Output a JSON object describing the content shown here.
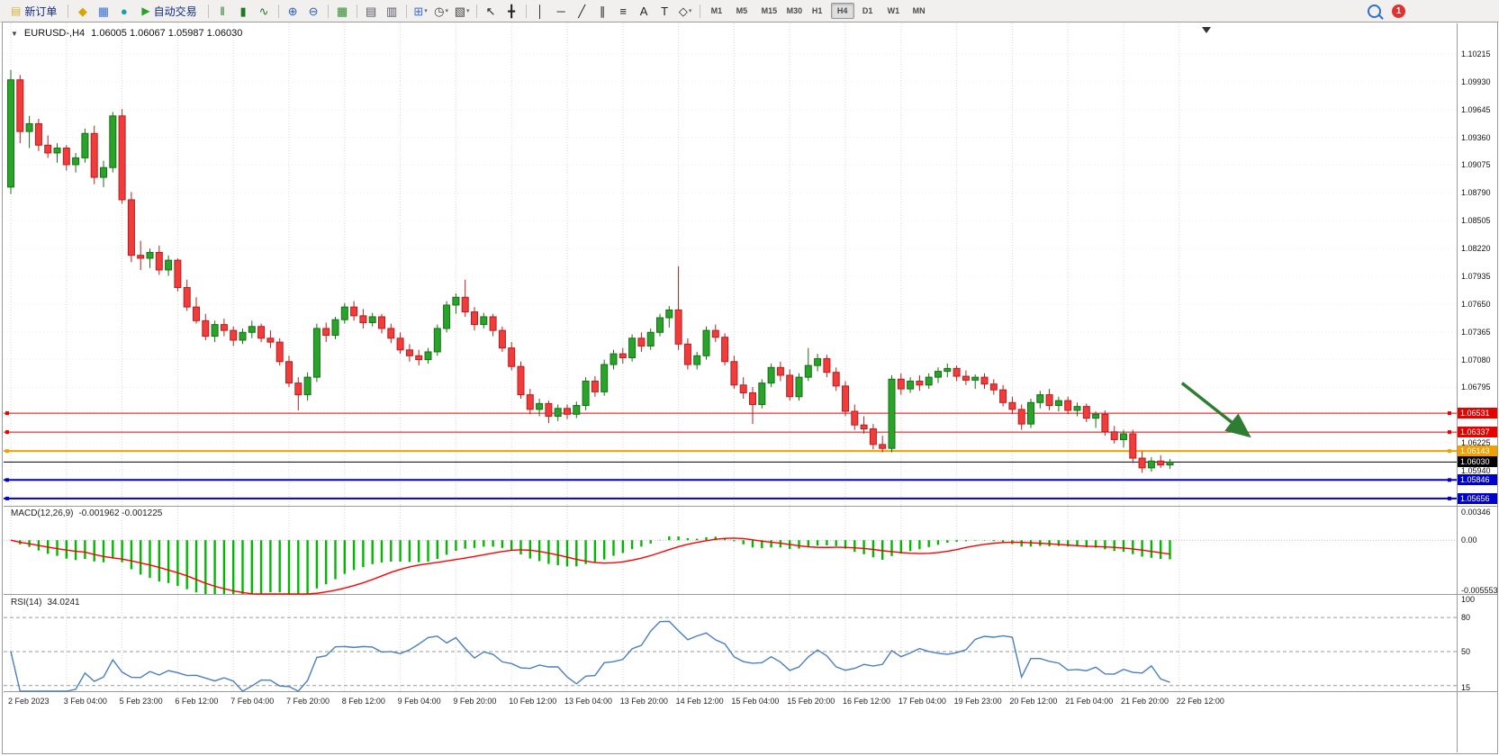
{
  "toolbar": {
    "notification_count": "1",
    "items": [
      {
        "t": "btn",
        "name": "new-order-button",
        "label": "新订单",
        "icon_glyph": "▤",
        "icon_color": "#d8b13a"
      },
      {
        "t": "sep"
      },
      {
        "t": "icon",
        "name": "deposit-icon",
        "glyph": "◆",
        "color": "#d9a400"
      },
      {
        "t": "icon",
        "name": "reports-icon",
        "glyph": "▦",
        "color": "#3b6fd6"
      },
      {
        "t": "icon",
        "name": "community-icon",
        "glyph": "●",
        "color": "#18a0b0"
      },
      {
        "t": "btn",
        "name": "autotrading-button",
        "label": "自动交易",
        "icon_glyph": "▶",
        "icon_color": "#27a327"
      },
      {
        "t": "sep"
      },
      {
        "t": "icon",
        "name": "bar-chart-type-icon",
        "glyph": "‖",
        "color": "#1f7a1f"
      },
      {
        "t": "icon",
        "name": "candlestick-type-icon",
        "glyph": "▮",
        "color": "#1f7a1f"
      },
      {
        "t": "icon",
        "name": "line-chart-type-icon",
        "glyph": "∿",
        "color": "#1f7a1f"
      },
      {
        "t": "sep"
      },
      {
        "t": "icon",
        "name": "zoom-in-icon",
        "glyph": "⊕",
        "color": "#2a5bc0"
      },
      {
        "t": "icon",
        "name": "zoom-out-icon",
        "glyph": "⊖",
        "color": "#2a5bc0"
      },
      {
        "t": "sep"
      },
      {
        "t": "icon",
        "name": "tile-windows-icon",
        "glyph": "▦",
        "color": "#2e8b2e"
      },
      {
        "t": "sep"
      },
      {
        "t": "icon",
        "name": "cascade-windows-icon",
        "glyph": "▤",
        "color": "#556"
      },
      {
        "t": "icon",
        "name": "arrange-windows-icon",
        "glyph": "▥",
        "color": "#556"
      },
      {
        "t": "sep"
      },
      {
        "t": "icon",
        "name": "new-chart-icon",
        "glyph": "⊞",
        "color": "#3b6fd6",
        "dropdown": true
      },
      {
        "t": "icon",
        "name": "period-clock-icon",
        "glyph": "◷",
        "color": "#444",
        "dropdown": true
      },
      {
        "t": "icon",
        "name": "templates-icon",
        "glyph": "▧",
        "color": "#444",
        "dropdown": true
      },
      {
        "t": "sep"
      },
      {
        "t": "icon",
        "name": "cursor-icon",
        "glyph": "↖",
        "color": "#222"
      },
      {
        "t": "icon",
        "name": "crosshair-icon",
        "glyph": "╋",
        "color": "#222"
      },
      {
        "t": "sep"
      },
      {
        "t": "icon",
        "name": "vertical-line-icon",
        "glyph": "│",
        "color": "#222"
      },
      {
        "t": "icon",
        "name": "horizontal-line-icon",
        "glyph": "─",
        "color": "#222"
      },
      {
        "t": "icon",
        "name": "trendline-icon",
        "glyph": "╱",
        "color": "#222"
      },
      {
        "t": "icon",
        "name": "equidistant-channel-icon",
        "glyph": "∥",
        "color": "#222"
      },
      {
        "t": "icon",
        "name": "fibonacci-icon",
        "glyph": "≡",
        "color": "#222"
      },
      {
        "t": "icon",
        "name": "text-icon",
        "glyph": "A",
        "color": "#222"
      },
      {
        "t": "icon",
        "name": "text-label-icon",
        "glyph": "T",
        "color": "#222"
      },
      {
        "t": "icon",
        "name": "arrows-shapes-icon",
        "glyph": "◇",
        "color": "#222",
        "dropdown": true
      },
      {
        "t": "sep"
      },
      {
        "t": "tf",
        "label": "M1"
      },
      {
        "t": "tf",
        "label": "M5"
      },
      {
        "t": "tf",
        "label": "M15"
      },
      {
        "t": "tf",
        "label": "M30"
      },
      {
        "t": "tf",
        "label": "H1"
      },
      {
        "t": "tf",
        "label": "H4",
        "active": true
      },
      {
        "t": "tf",
        "label": "D1"
      },
      {
        "t": "tf",
        "label": "W1"
      },
      {
        "t": "tf",
        "label": "MN"
      }
    ]
  },
  "chart": {
    "title": "EURUSD-,H4",
    "ohlc_text": "1.06005 1.06067 1.05987 1.06030"
  },
  "chart_data": {
    "type": "candlestick",
    "symbol": "EURUSD-",
    "timeframe": "H4",
    "current": {
      "open": 1.06005,
      "high": 1.06067,
      "low": 1.05987,
      "close": 1.0603
    },
    "colors": {
      "up_fill": "#29a329",
      "up_border": "#157015",
      "down_fill": "#f23b3b",
      "down_border": "#b51f1f",
      "macd_bar": "#00b800",
      "macd_signal": "#ff0000",
      "rsi_line": "#4a7ebf",
      "grid": "#d8d8d8",
      "arrow": "#2e7d32"
    },
    "price_gridlines": [
      1.10215,
      1.0993,
      1.09645,
      1.0936,
      1.09075,
      1.0879,
      1.08505,
      1.0822,
      1.07935,
      1.0765,
      1.07365,
      1.0708,
      1.06795,
      1.0651,
      1.06225,
      1.0594,
      1.05655
    ],
    "levels": [
      {
        "price": 1.06531,
        "label": "1.06531",
        "color": "#e60000",
        "width": 1
      },
      {
        "price": 1.06337,
        "label": "1.06337",
        "color": "#e60000",
        "width": 1
      },
      {
        "price": 1.06143,
        "label": "1.06143",
        "color": "#f0a000",
        "width": 2
      },
      {
        "price": 1.0603,
        "label": "1.06030",
        "color": "#000000",
        "width": 1
      },
      {
        "price": 1.05846,
        "label": "1.05846",
        "color": "#0000cc",
        "width": 2
      },
      {
        "price": 1.05656,
        "label": "1.05656",
        "color": "#0000cc",
        "width": 2
      }
    ],
    "x_tick_labels": [
      "2 Feb 2023",
      "3 Feb 04:00",
      "5 Feb 23:00",
      "6 Feb 12:00",
      "7 Feb 04:00",
      "7 Feb 20:00",
      "8 Feb 12:00",
      "9 Feb 04:00",
      "9 Feb 20:00",
      "10 Feb 12:00",
      "13 Feb 04:00",
      "13 Feb 20:00",
      "14 Feb 12:00",
      "15 Feb 04:00",
      "15 Feb 20:00",
      "16 Feb 12:00",
      "17 Feb 04:00",
      "19 Feb 23:00",
      "20 Feb 12:00",
      "21 Feb 04:00",
      "21 Feb 20:00",
      "22 Feb 12:00"
    ],
    "candles_per_tick": 6,
    "candles": [
      [
        1.0885,
        1.1005,
        1.0878,
        1.0995
      ],
      [
        1.0995,
        1.1,
        1.093,
        1.0942
      ],
      [
        1.0942,
        1.0958,
        1.0925,
        1.095
      ],
      [
        1.095,
        1.0955,
        1.0922,
        1.0928
      ],
      [
        1.0928,
        1.0938,
        1.0915,
        1.092
      ],
      [
        1.092,
        1.093,
        1.091,
        1.0925
      ],
      [
        1.0925,
        1.0928,
        1.0902,
        1.0908
      ],
      [
        1.0908,
        1.092,
        1.09,
        1.0915
      ],
      [
        1.0915,
        1.0945,
        1.091,
        1.094
      ],
      [
        1.094,
        1.0948,
        1.0888,
        1.0895
      ],
      [
        1.0895,
        1.0912,
        1.0885,
        1.0905
      ],
      [
        1.0905,
        1.0962,
        1.09,
        1.0958
      ],
      [
        1.0958,
        1.0965,
        1.0868,
        1.0872
      ],
      [
        1.0872,
        1.088,
        1.0808,
        1.0815
      ],
      [
        1.0815,
        1.083,
        1.08,
        1.0812
      ],
      [
        1.0812,
        1.0822,
        1.0802,
        1.0818
      ],
      [
        1.0818,
        1.0825,
        1.0795,
        1.08
      ],
      [
        1.08,
        1.0815,
        1.0794,
        1.081
      ],
      [
        1.081,
        1.0812,
        1.0778,
        1.0782
      ],
      [
        1.0782,
        1.079,
        1.0758,
        1.0762
      ],
      [
        1.0762,
        1.0772,
        1.0745,
        1.0748
      ],
      [
        1.0748,
        1.0755,
        1.0728,
        1.0732
      ],
      [
        1.0732,
        1.0748,
        1.0726,
        1.0744
      ],
      [
        1.0744,
        1.075,
        1.0732,
        1.0738
      ],
      [
        1.0738,
        1.0742,
        1.0722,
        1.0728
      ],
      [
        1.0728,
        1.074,
        1.0724,
        1.0736
      ],
      [
        1.0736,
        1.0748,
        1.073,
        1.0742
      ],
      [
        1.0742,
        1.0745,
        1.0726,
        1.073
      ],
      [
        1.073,
        1.0738,
        1.072,
        1.0726
      ],
      [
        1.0726,
        1.073,
        1.0702,
        1.0706
      ],
      [
        1.0706,
        1.0712,
        1.068,
        1.0684
      ],
      [
        1.0684,
        1.069,
        1.0656,
        1.0672
      ],
      [
        1.0672,
        1.0695,
        1.0666,
        1.069
      ],
      [
        1.069,
        1.0745,
        1.0685,
        1.074
      ],
      [
        1.074,
        1.0746,
        1.0726,
        1.0733
      ],
      [
        1.0733,
        1.0752,
        1.0729,
        1.0749
      ],
      [
        1.0749,
        1.0766,
        1.0745,
        1.0762
      ],
      [
        1.0762,
        1.0768,
        1.0748,
        1.0753
      ],
      [
        1.0753,
        1.076,
        1.074,
        1.0746
      ],
      [
        1.0746,
        1.0756,
        1.0742,
        1.0752
      ],
      [
        1.0752,
        1.0755,
        1.0735,
        1.074
      ],
      [
        1.074,
        1.0745,
        1.0725,
        1.073
      ],
      [
        1.073,
        1.0736,
        1.0714,
        1.0718
      ],
      [
        1.0718,
        1.0724,
        1.0706,
        1.0712
      ],
      [
        1.0712,
        1.0718,
        1.0702,
        1.0708
      ],
      [
        1.0708,
        1.072,
        1.0704,
        1.0716
      ],
      [
        1.0716,
        1.0744,
        1.0712,
        1.074
      ],
      [
        1.074,
        1.0768,
        1.0736,
        1.0764
      ],
      [
        1.0764,
        1.0776,
        1.0755,
        1.0772
      ],
      [
        1.0772,
        1.079,
        1.0752,
        1.0757
      ],
      [
        1.0757,
        1.0762,
        1.0738,
        1.0744
      ],
      [
        1.0744,
        1.0756,
        1.074,
        1.0752
      ],
      [
        1.0752,
        1.0755,
        1.0732,
        1.0738
      ],
      [
        1.0738,
        1.0742,
        1.0716,
        1.072
      ],
      [
        1.072,
        1.0726,
        1.0697,
        1.0701
      ],
      [
        1.0701,
        1.0706,
        1.0668,
        1.0672
      ],
      [
        1.0672,
        1.0678,
        1.0652,
        1.0657
      ],
      [
        1.0657,
        1.0668,
        1.065,
        1.0663
      ],
      [
        1.0663,
        1.0666,
        1.0643,
        1.065
      ],
      [
        1.065,
        1.0662,
        1.0645,
        1.0658
      ],
      [
        1.0658,
        1.0662,
        1.0647,
        1.0652
      ],
      [
        1.0652,
        1.0665,
        1.0648,
        1.0661
      ],
      [
        1.0661,
        1.069,
        1.0656,
        1.0686
      ],
      [
        1.0686,
        1.0691,
        1.067,
        1.0675
      ],
      [
        1.0675,
        1.0708,
        1.0671,
        1.0703
      ],
      [
        1.0703,
        1.0718,
        1.0698,
        1.0714
      ],
      [
        1.0714,
        1.072,
        1.0704,
        1.071
      ],
      [
        1.071,
        1.0734,
        1.0706,
        1.073
      ],
      [
        1.073,
        1.0736,
        1.0716,
        1.0722
      ],
      [
        1.0722,
        1.074,
        1.0718,
        1.0736
      ],
      [
        1.0736,
        1.0755,
        1.0732,
        1.0751
      ],
      [
        1.0751,
        1.0763,
        1.0741,
        1.0759
      ],
      [
        1.0759,
        1.0804,
        1.0718,
        1.0724
      ],
      [
        1.0724,
        1.073,
        1.0698,
        1.0703
      ],
      [
        1.0703,
        1.0716,
        1.0698,
        1.0712
      ],
      [
        1.0712,
        1.0742,
        1.0708,
        1.0738
      ],
      [
        1.0738,
        1.0744,
        1.0726,
        1.0731
      ],
      [
        1.0731,
        1.0735,
        1.0702,
        1.0706
      ],
      [
        1.0706,
        1.0712,
        1.0678,
        1.0682
      ],
      [
        1.0682,
        1.069,
        1.0668,
        1.0674
      ],
      [
        1.0674,
        1.068,
        1.0642,
        1.0662
      ],
      [
        1.0662,
        1.0688,
        1.0658,
        1.0684
      ],
      [
        1.0684,
        1.0704,
        1.068,
        1.07
      ],
      [
        1.07,
        1.0706,
        1.0686,
        1.0692
      ],
      [
        1.0692,
        1.0698,
        1.0666,
        1.067
      ],
      [
        1.067,
        1.0694,
        1.0666,
        1.069
      ],
      [
        1.069,
        1.072,
        1.0686,
        1.0702
      ],
      [
        1.0702,
        1.0714,
        1.0696,
        1.0709
      ],
      [
        1.0709,
        1.0713,
        1.069,
        1.0695
      ],
      [
        1.0695,
        1.07,
        1.0676,
        1.0681
      ],
      [
        1.0681,
        1.0686,
        1.065,
        1.0655
      ],
      [
        1.0655,
        1.0662,
        1.0636,
        1.0641
      ],
      [
        1.0641,
        1.065,
        1.0632,
        1.0637
      ],
      [
        1.0637,
        1.0642,
        1.0616,
        1.0621
      ],
      [
        1.0621,
        1.063,
        1.0613,
        1.0617
      ],
      [
        1.0617,
        1.0692,
        1.0613,
        1.0688
      ],
      [
        1.0688,
        1.0694,
        1.0672,
        1.0678
      ],
      [
        1.0678,
        1.069,
        1.0674,
        1.0686
      ],
      [
        1.0686,
        1.0692,
        1.0676,
        1.0682
      ],
      [
        1.0682,
        1.0694,
        1.0678,
        1.069
      ],
      [
        1.069,
        1.07,
        1.0684,
        1.0696
      ],
      [
        1.0696,
        1.0704,
        1.069,
        1.0699
      ],
      [
        1.0699,
        1.0702,
        1.0686,
        1.0691
      ],
      [
        1.0691,
        1.0697,
        1.0682,
        1.0687
      ],
      [
        1.0687,
        1.0693,
        1.0678,
        1.069
      ],
      [
        1.069,
        1.0694,
        1.0678,
        1.0683
      ],
      [
        1.0683,
        1.0688,
        1.0672,
        1.0677
      ],
      [
        1.0677,
        1.0682,
        1.066,
        1.0664
      ],
      [
        1.0664,
        1.067,
        1.0652,
        1.0657
      ],
      [
        1.0657,
        1.0662,
        1.0636,
        1.0642
      ],
      [
        1.0642,
        1.0668,
        1.0638,
        1.0664
      ],
      [
        1.0664,
        1.0676,
        1.0658,
        1.0672
      ],
      [
        1.0672,
        1.0678,
        1.0656,
        1.0661
      ],
      [
        1.0661,
        1.067,
        1.0655,
        1.0666
      ],
      [
        1.0666,
        1.067,
        1.0652,
        1.0656
      ],
      [
        1.0656,
        1.0664,
        1.065,
        1.066
      ],
      [
        1.066,
        1.0663,
        1.0644,
        1.0648
      ],
      [
        1.0648,
        1.0655,
        1.0638,
        1.0652
      ],
      [
        1.0652,
        1.0656,
        1.063,
        1.0634
      ],
      [
        1.0634,
        1.064,
        1.0622,
        1.0626
      ],
      [
        1.0626,
        1.0636,
        1.0618,
        1.0632
      ],
      [
        1.0632,
        1.0636,
        1.0602,
        1.0607
      ],
      [
        1.0607,
        1.0614,
        1.0592,
        1.0597
      ],
      [
        1.0597,
        1.0608,
        1.0593,
        1.0604
      ],
      [
        1.0604,
        1.061,
        1.0597,
        1.06
      ],
      [
        1.06,
        1.0606,
        1.0596,
        1.0603
      ]
    ],
    "indicators": {
      "macd": {
        "label": "MACD(12,26,9)",
        "values_text": "-0.001962 -0.001225",
        "params": [
          12,
          26,
          9
        ],
        "value": -0.001962,
        "signal_value": -0.001225,
        "scale": {
          "max": 0.00346,
          "zero": 0.0,
          "min": -0.005553
        },
        "scale_labels": [
          "0.00346",
          "0.00",
          "-0.005553"
        ]
      },
      "rsi": {
        "label": "RSI(14)",
        "value_text": "34.0241",
        "period": 14,
        "value": 34.0241,
        "levels": [
          80,
          50,
          20
        ],
        "axis_labels": [
          "100",
          "80",
          "50",
          "15"
        ]
      }
    },
    "annotations": [
      {
        "type": "arrow",
        "color": "#2e7d32",
        "from": {
          "bar": 126.3,
          "price": 1.0684
        },
        "to": {
          "bar": 133.5,
          "price": 1.063
        }
      }
    ]
  }
}
